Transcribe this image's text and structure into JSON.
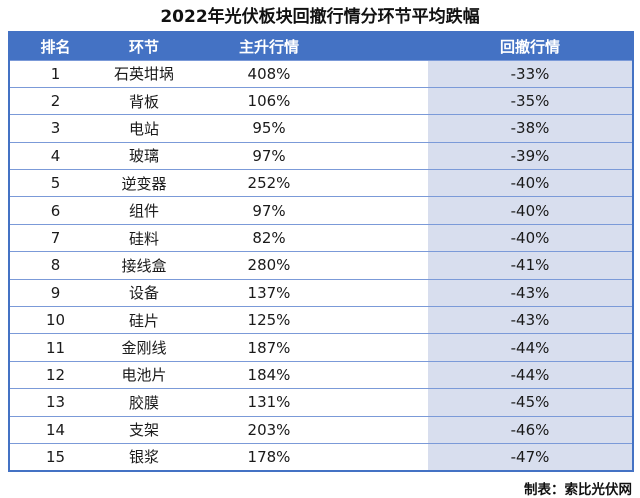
{
  "title": "2022年光伏板块回撤行情分环节平均跌幅",
  "table": {
    "headers": [
      "排名",
      "环节",
      "主升行情",
      "回撤行情"
    ],
    "rows": [
      {
        "rank": "1",
        "segment": "石英坩埚",
        "rise": "408%",
        "drawdown": "-33%"
      },
      {
        "rank": "2",
        "segment": "背板",
        "rise": "106%",
        "drawdown": "-35%"
      },
      {
        "rank": "3",
        "segment": "电站",
        "rise": "95%",
        "drawdown": "-38%"
      },
      {
        "rank": "4",
        "segment": "玻璃",
        "rise": "97%",
        "drawdown": "-39%"
      },
      {
        "rank": "5",
        "segment": "逆变器",
        "rise": "252%",
        "drawdown": "-40%"
      },
      {
        "rank": "6",
        "segment": "组件",
        "rise": "97%",
        "drawdown": "-40%"
      },
      {
        "rank": "7",
        "segment": "硅料",
        "rise": "82%",
        "drawdown": "-40%"
      },
      {
        "rank": "8",
        "segment": "接线盒",
        "rise": "280%",
        "drawdown": "-41%"
      },
      {
        "rank": "9",
        "segment": "设备",
        "rise": "137%",
        "drawdown": "-43%"
      },
      {
        "rank": "10",
        "segment": "硅片",
        "rise": "125%",
        "drawdown": "-43%"
      },
      {
        "rank": "11",
        "segment": "金刚线",
        "rise": "187%",
        "drawdown": "-44%"
      },
      {
        "rank": "12",
        "segment": "电池片",
        "rise": "184%",
        "drawdown": "-44%"
      },
      {
        "rank": "13",
        "segment": "胶膜",
        "rise": "131%",
        "drawdown": "-45%"
      },
      {
        "rank": "14",
        "segment": "支架",
        "rise": "203%",
        "drawdown": "-46%"
      },
      {
        "rank": "15",
        "segment": "银浆",
        "rise": "178%",
        "drawdown": "-47%"
      }
    ]
  },
  "footer": "制表：索比光伏网",
  "colors": {
    "header_bg": "#4472C4",
    "header_text": "#ffffff",
    "row_border": "#7b9ad8",
    "outer_border": "#4472C4",
    "drawdown_bg": "#d8deee"
  },
  "chart_data": {
    "type": "table",
    "title": "2022年光伏板块回撤行情分环节平均跌幅",
    "columns": [
      "排名",
      "环节",
      "主升行情",
      "回撤行情"
    ],
    "categories": [
      "石英坩埚",
      "背板",
      "电站",
      "玻璃",
      "逆变器",
      "组件",
      "硅料",
      "接线盒",
      "设备",
      "硅片",
      "金刚线",
      "电池片",
      "胶膜",
      "支架",
      "银浆"
    ],
    "series": [
      {
        "name": "主升行情(%)",
        "values": [
          408,
          106,
          95,
          97,
          252,
          97,
          82,
          280,
          137,
          125,
          187,
          184,
          131,
          203,
          178
        ]
      },
      {
        "name": "回撤行情(%)",
        "values": [
          -33,
          -35,
          -38,
          -39,
          -40,
          -40,
          -40,
          -41,
          -43,
          -43,
          -44,
          -44,
          -45,
          -46,
          -47
        ]
      }
    ],
    "source": "制表：索比光伏网"
  }
}
